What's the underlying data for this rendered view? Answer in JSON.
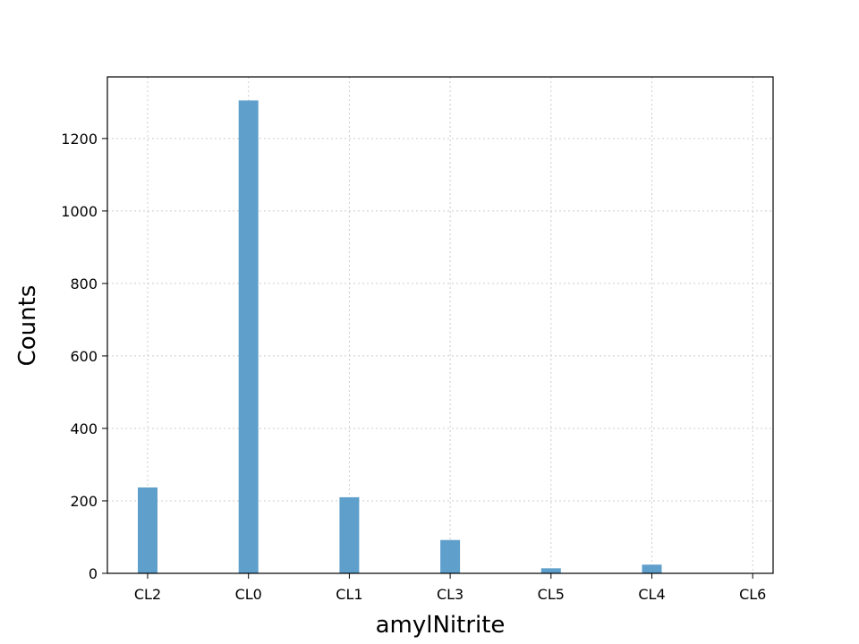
{
  "chart_data": {
    "type": "bar",
    "title": "",
    "xlabel": "amylNitrite",
    "ylabel": "Counts",
    "categories": [
      "CL2",
      "CL0",
      "CL1",
      "CL3",
      "CL5",
      "CL4",
      "CL6"
    ],
    "values": [
      237,
      1305,
      210,
      92,
      14,
      24,
      0
    ],
    "ylim": [
      0,
      1370
    ],
    "yticks": [
      0,
      200,
      400,
      600,
      800,
      1000,
      1200
    ],
    "grid": true,
    "bar_color": "#5f9fcc"
  }
}
